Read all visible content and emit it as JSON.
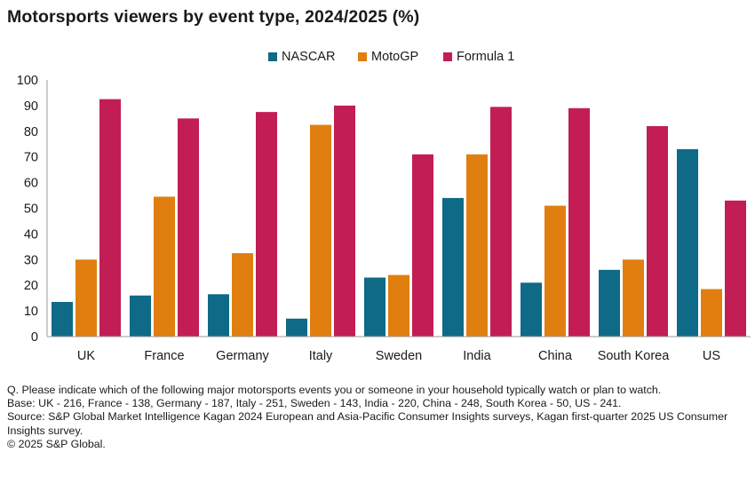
{
  "chart_data": {
    "type": "bar",
    "title": "Motorsports viewers by event type, 2024/2025 (%)",
    "categories": [
      "UK",
      "France",
      "Germany",
      "Italy",
      "Sweden",
      "India",
      "China",
      "South Korea",
      "US"
    ],
    "series": [
      {
        "name": "NASCAR",
        "color": "#0e6a86",
        "values": [
          13.5,
          16,
          16.5,
          7,
          23,
          54,
          21,
          26,
          73
        ]
      },
      {
        "name": "MotoGP",
        "color": "#e07f10",
        "values": [
          30,
          54.5,
          32.5,
          82.5,
          24,
          71,
          51,
          30,
          18.5
        ]
      },
      {
        "name": "Formula 1",
        "color": "#c21d55",
        "values": [
          92.5,
          85,
          87.5,
          90,
          71,
          89.5,
          89,
          82,
          53
        ]
      }
    ],
    "y_ticks": [
      "0",
      "10",
      "20",
      "30",
      "40",
      "50",
      "60",
      "70",
      "80",
      "90",
      "100"
    ],
    "ylim": [
      0,
      100
    ],
    "xlabel": "",
    "ylabel": "",
    "legend_position": "top-center",
    "grid": false
  },
  "footnotes": {
    "question": "Q. Please indicate which of the following major motorsports events you or someone in your household typically watch or plan to watch.",
    "base": "Base: UK - 216, France - 138, Germany - 187, Italy - 251, Sweden - 143, India - 220, China - 248, South Korea - 50, US - 241.",
    "source": "Source: S&P Global Market Intelligence Kagan 2024 European and Asia-Pacific Consumer Insights surveys, Kagan first-quarter 2025 US Consumer Insights survey.",
    "copyright": "© 2025 S&P Global."
  }
}
